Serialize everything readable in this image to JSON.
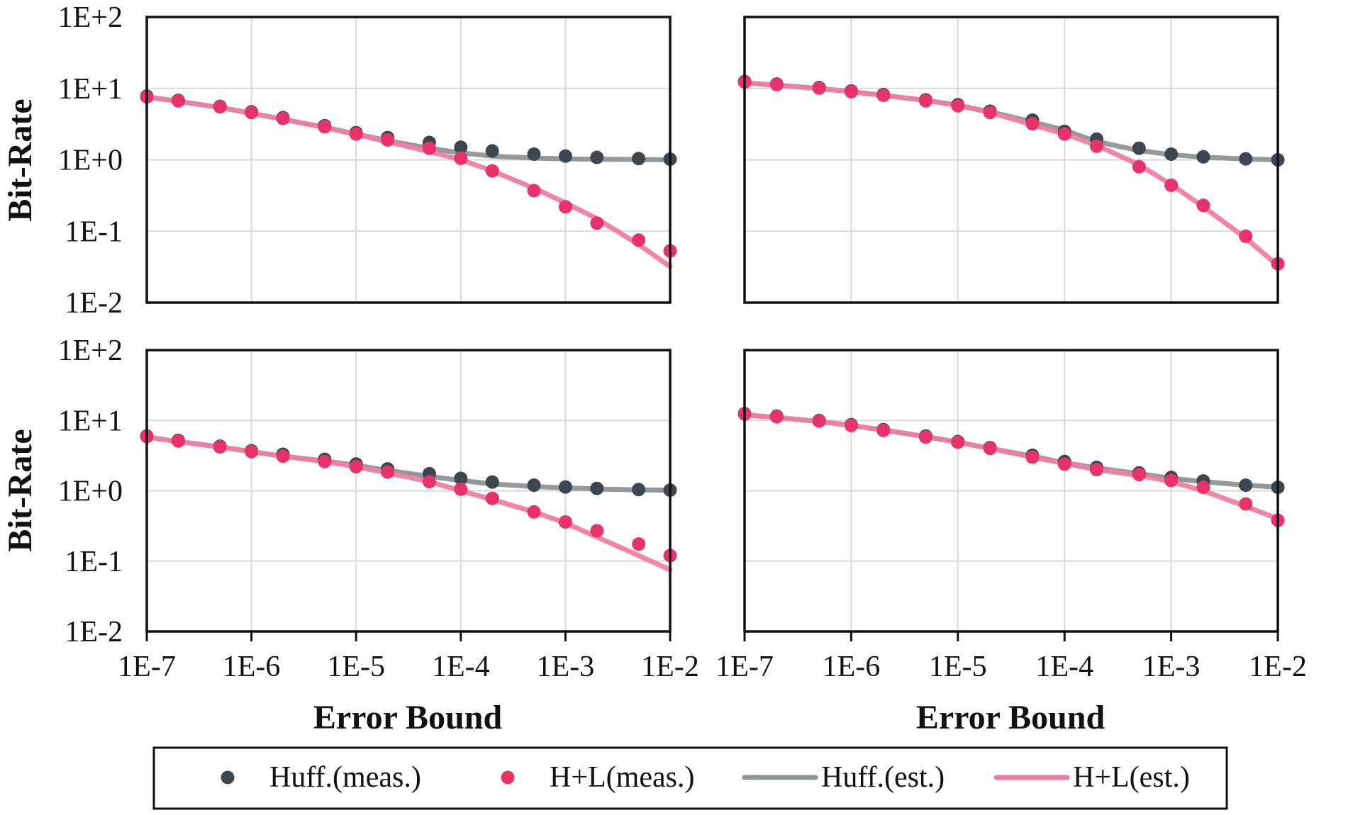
{
  "colors": {
    "huff_meas": "#3d4650",
    "hl_meas": "#e8336a",
    "huff_est": "#8f9497",
    "hl_est": "#ee7fa0",
    "grid": "#d9d9d9",
    "frame": "#111111"
  },
  "legend": {
    "huff_meas": "Huff.(meas.)",
    "hl_meas": "H+L(meas.)",
    "huff_est": "Huff.(est.)",
    "hl_est": "H+L(est.)"
  },
  "axes": {
    "ylabel": "Bit-Rate",
    "xlabel": "Error Bound",
    "yticks": [
      "1E+2",
      "1E+1",
      "1E+0",
      "1E-1",
      "1E-2"
    ],
    "xticks": [
      "1E-7",
      "1E-6",
      "1E-5",
      "1E-4",
      "1E-3",
      "1E-2"
    ]
  },
  "chart_data": [
    {
      "type": "scatter",
      "panel": "top-left",
      "xscale": "log",
      "yscale": "log",
      "xlim": [
        1e-07,
        0.01
      ],
      "ylim": [
        0.01,
        100
      ],
      "x": [
        1e-07,
        2e-07,
        5e-07,
        1e-06,
        2e-06,
        5e-06,
        1e-05,
        2e-05,
        5e-05,
        0.0001,
        0.0002,
        0.0005,
        0.001,
        0.002,
        0.005,
        0.01
      ],
      "series": [
        {
          "name": "Huff.(meas.)",
          "kind": "points",
          "values": [
            7.8,
            6.8,
            5.6,
            4.7,
            3.9,
            3.0,
            2.4,
            2.05,
            1.75,
            1.5,
            1.33,
            1.2,
            1.13,
            1.08,
            1.04,
            1.02
          ]
        },
        {
          "name": "H+L(meas.)",
          "kind": "points",
          "values": [
            7.6,
            6.7,
            5.5,
            4.6,
            3.8,
            2.9,
            2.3,
            1.9,
            1.45,
            1.05,
            0.7,
            0.37,
            0.22,
            0.13,
            0.075,
            0.053
          ]
        },
        {
          "name": "Huff.(est.)",
          "kind": "line",
          "values": [
            7.6,
            6.6,
            5.4,
            4.5,
            3.7,
            2.85,
            2.3,
            1.85,
            1.45,
            1.25,
            1.13,
            1.06,
            1.03,
            1.02,
            1.01,
            1.0
          ]
        },
        {
          "name": "H+L(est.)",
          "kind": "line",
          "values": [
            7.6,
            6.6,
            5.4,
            4.5,
            3.7,
            2.85,
            2.25,
            1.8,
            1.3,
            1.0,
            0.7,
            0.4,
            0.25,
            0.15,
            0.065,
            0.032
          ]
        }
      ]
    },
    {
      "type": "scatter",
      "panel": "top-right",
      "xscale": "log",
      "yscale": "log",
      "xlim": [
        1e-07,
        0.01
      ],
      "ylim": [
        0.01,
        100
      ],
      "x": [
        1e-07,
        2e-07,
        5e-07,
        1e-06,
        2e-06,
        5e-06,
        1e-05,
        2e-05,
        5e-05,
        0.0001,
        0.0002,
        0.0005,
        0.001,
        0.002,
        0.005,
        0.01
      ],
      "series": [
        {
          "name": "Huff.(meas.)",
          "kind": "points",
          "values": [
            12.5,
            11.5,
            10.3,
            9.2,
            8.2,
            6.9,
            5.9,
            4.8,
            3.6,
            2.5,
            1.95,
            1.45,
            1.2,
            1.1,
            1.03,
            1.0
          ]
        },
        {
          "name": "H+L(meas.)",
          "kind": "points",
          "values": [
            12.3,
            11.3,
            10.1,
            9.0,
            8.0,
            6.7,
            5.7,
            4.6,
            3.2,
            2.3,
            1.55,
            0.8,
            0.44,
            0.23,
            0.085,
            0.035
          ]
        },
        {
          "name": "Huff.(est.)",
          "kind": "line",
          "values": [
            12.0,
            11.1,
            10.0,
            9.0,
            8.0,
            6.8,
            5.8,
            4.7,
            3.4,
            2.6,
            1.8,
            1.35,
            1.18,
            1.09,
            1.03,
            1.0
          ]
        },
        {
          "name": "H+L(est.)",
          "kind": "line",
          "values": [
            12.0,
            11.1,
            10.0,
            9.0,
            8.0,
            6.8,
            5.8,
            4.6,
            3.1,
            2.3,
            1.6,
            0.85,
            0.45,
            0.22,
            0.08,
            0.033
          ]
        }
      ]
    },
    {
      "type": "scatter",
      "panel": "bottom-left",
      "xscale": "log",
      "yscale": "log",
      "xlim": [
        1e-07,
        0.01
      ],
      "ylim": [
        0.01,
        100
      ],
      "x": [
        1e-07,
        2e-07,
        5e-07,
        1e-06,
        2e-06,
        5e-06,
        1e-05,
        2e-05,
        5e-05,
        0.0001,
        0.0002,
        0.0005,
        0.001,
        0.002,
        0.005,
        0.01
      ],
      "series": [
        {
          "name": "Huff.(meas.)",
          "kind": "points",
          "values": [
            6.0,
            5.2,
            4.3,
            3.7,
            3.3,
            2.8,
            2.4,
            2.05,
            1.75,
            1.5,
            1.33,
            1.2,
            1.13,
            1.08,
            1.04,
            1.02
          ]
        },
        {
          "name": "H+L(meas.)",
          "kind": "points",
          "values": [
            5.9,
            5.1,
            4.2,
            3.6,
            3.1,
            2.6,
            2.2,
            1.85,
            1.35,
            1.05,
            0.78,
            0.5,
            0.36,
            0.27,
            0.175,
            0.12
          ]
        },
        {
          "name": "Huff.(est.)",
          "kind": "line",
          "values": [
            5.8,
            5.0,
            4.2,
            3.6,
            3.1,
            2.65,
            2.3,
            1.95,
            1.6,
            1.4,
            1.25,
            1.15,
            1.1,
            1.06,
            1.03,
            1.02
          ]
        },
        {
          "name": "H+L(est.)",
          "kind": "line",
          "values": [
            5.8,
            5.0,
            4.2,
            3.6,
            3.1,
            2.6,
            2.2,
            1.8,
            1.35,
            1.0,
            0.75,
            0.5,
            0.35,
            0.22,
            0.12,
            0.075
          ]
        }
      ]
    },
    {
      "type": "scatter",
      "panel": "bottom-right",
      "xscale": "log",
      "yscale": "log",
      "xlim": [
        1e-07,
        0.01
      ],
      "ylim": [
        0.01,
        100
      ],
      "x": [
        1e-07,
        2e-07,
        5e-07,
        1e-06,
        2e-06,
        5e-06,
        1e-05,
        2e-05,
        5e-05,
        0.0001,
        0.0002,
        0.0005,
        0.001,
        0.002,
        0.005,
        0.01
      ],
      "series": [
        {
          "name": "Huff.(meas.)",
          "kind": "points",
          "values": [
            12.5,
            11.5,
            10.0,
            8.7,
            7.4,
            6.0,
            5.0,
            4.1,
            3.2,
            2.6,
            2.15,
            1.8,
            1.55,
            1.38,
            1.2,
            1.12
          ]
        },
        {
          "name": "H+L(meas.)",
          "kind": "points",
          "values": [
            12.3,
            11.3,
            9.8,
            8.5,
            7.2,
            5.8,
            4.9,
            4.0,
            3.0,
            2.4,
            2.0,
            1.7,
            1.4,
            1.12,
            0.65,
            0.38
          ]
        },
        {
          "name": "Huff.(est.)",
          "kind": "line",
          "values": [
            12.0,
            11.0,
            9.7,
            8.5,
            7.3,
            5.9,
            4.9,
            4.0,
            3.1,
            2.5,
            2.1,
            1.75,
            1.5,
            1.35,
            1.2,
            1.13
          ]
        },
        {
          "name": "H+L(est.)",
          "kind": "line",
          "values": [
            12.0,
            11.0,
            9.7,
            8.5,
            7.3,
            5.9,
            4.9,
            4.0,
            3.0,
            2.45,
            2.0,
            1.65,
            1.35,
            1.0,
            0.6,
            0.4
          ]
        }
      ]
    }
  ]
}
